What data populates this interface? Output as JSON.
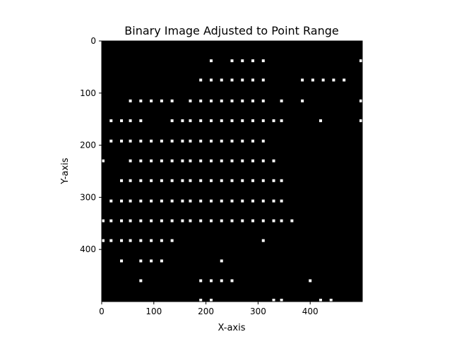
{
  "chart_data": {
    "type": "heatmap",
    "title": "Binary Image Adjusted to Point Range",
    "xlabel": "X-axis",
    "ylabel": "Y-axis",
    "xlim": [
      0,
      500
    ],
    "ylim": [
      500,
      0
    ],
    "x_ticks": [
      0,
      100,
      200,
      300,
      400
    ],
    "y_ticks": [
      0,
      100,
      200,
      300,
      400
    ],
    "background_color": "#000000",
    "point_color": "#ffffff",
    "grid": false,
    "points": [
      {
        "x": 210,
        "y": 38
      },
      {
        "x": 250,
        "y": 38
      },
      {
        "x": 270,
        "y": 38
      },
      {
        "x": 290,
        "y": 38
      },
      {
        "x": 310,
        "y": 38
      },
      {
        "x": 500,
        "y": 38
      },
      {
        "x": 190,
        "y": 75
      },
      {
        "x": 210,
        "y": 75
      },
      {
        "x": 230,
        "y": 75
      },
      {
        "x": 250,
        "y": 75
      },
      {
        "x": 270,
        "y": 75
      },
      {
        "x": 290,
        "y": 75
      },
      {
        "x": 310,
        "y": 75
      },
      {
        "x": 385,
        "y": 75
      },
      {
        "x": 405,
        "y": 75
      },
      {
        "x": 425,
        "y": 75
      },
      {
        "x": 445,
        "y": 75
      },
      {
        "x": 465,
        "y": 75
      },
      {
        "x": 55,
        "y": 115
      },
      {
        "x": 75,
        "y": 115
      },
      {
        "x": 95,
        "y": 115
      },
      {
        "x": 115,
        "y": 115
      },
      {
        "x": 135,
        "y": 115
      },
      {
        "x": 170,
        "y": 115
      },
      {
        "x": 190,
        "y": 115
      },
      {
        "x": 210,
        "y": 115
      },
      {
        "x": 230,
        "y": 115
      },
      {
        "x": 250,
        "y": 115
      },
      {
        "x": 270,
        "y": 115
      },
      {
        "x": 290,
        "y": 115
      },
      {
        "x": 310,
        "y": 115
      },
      {
        "x": 345,
        "y": 115
      },
      {
        "x": 385,
        "y": 115
      },
      {
        "x": 500,
        "y": 115
      },
      {
        "x": 18,
        "y": 153
      },
      {
        "x": 38,
        "y": 153
      },
      {
        "x": 55,
        "y": 153
      },
      {
        "x": 75,
        "y": 153
      },
      {
        "x": 135,
        "y": 153
      },
      {
        "x": 155,
        "y": 153
      },
      {
        "x": 170,
        "y": 153
      },
      {
        "x": 190,
        "y": 153
      },
      {
        "x": 210,
        "y": 153
      },
      {
        "x": 230,
        "y": 153
      },
      {
        "x": 250,
        "y": 153
      },
      {
        "x": 270,
        "y": 153
      },
      {
        "x": 290,
        "y": 153
      },
      {
        "x": 310,
        "y": 153
      },
      {
        "x": 330,
        "y": 153
      },
      {
        "x": 345,
        "y": 153
      },
      {
        "x": 420,
        "y": 153
      },
      {
        "x": 500,
        "y": 153
      },
      {
        "x": 18,
        "y": 192
      },
      {
        "x": 38,
        "y": 192
      },
      {
        "x": 55,
        "y": 192
      },
      {
        "x": 75,
        "y": 192
      },
      {
        "x": 95,
        "y": 192
      },
      {
        "x": 115,
        "y": 192
      },
      {
        "x": 135,
        "y": 192
      },
      {
        "x": 155,
        "y": 192
      },
      {
        "x": 170,
        "y": 192
      },
      {
        "x": 190,
        "y": 192
      },
      {
        "x": 210,
        "y": 192
      },
      {
        "x": 230,
        "y": 192
      },
      {
        "x": 250,
        "y": 192
      },
      {
        "x": 270,
        "y": 192
      },
      {
        "x": 290,
        "y": 192
      },
      {
        "x": 310,
        "y": 192
      },
      {
        "x": 0,
        "y": 230
      },
      {
        "x": 55,
        "y": 230
      },
      {
        "x": 75,
        "y": 230
      },
      {
        "x": 95,
        "y": 230
      },
      {
        "x": 115,
        "y": 230
      },
      {
        "x": 135,
        "y": 230
      },
      {
        "x": 155,
        "y": 230
      },
      {
        "x": 170,
        "y": 230
      },
      {
        "x": 190,
        "y": 230
      },
      {
        "x": 210,
        "y": 230
      },
      {
        "x": 230,
        "y": 230
      },
      {
        "x": 250,
        "y": 230
      },
      {
        "x": 270,
        "y": 230
      },
      {
        "x": 290,
        "y": 230
      },
      {
        "x": 310,
        "y": 230
      },
      {
        "x": 330,
        "y": 230
      },
      {
        "x": 38,
        "y": 268
      },
      {
        "x": 55,
        "y": 268
      },
      {
        "x": 75,
        "y": 268
      },
      {
        "x": 95,
        "y": 268
      },
      {
        "x": 115,
        "y": 268
      },
      {
        "x": 135,
        "y": 268
      },
      {
        "x": 155,
        "y": 268
      },
      {
        "x": 170,
        "y": 268
      },
      {
        "x": 190,
        "y": 268
      },
      {
        "x": 210,
        "y": 268
      },
      {
        "x": 230,
        "y": 268
      },
      {
        "x": 250,
        "y": 268
      },
      {
        "x": 270,
        "y": 268
      },
      {
        "x": 290,
        "y": 268
      },
      {
        "x": 310,
        "y": 268
      },
      {
        "x": 330,
        "y": 268
      },
      {
        "x": 345,
        "y": 268
      },
      {
        "x": 18,
        "y": 307
      },
      {
        "x": 38,
        "y": 307
      },
      {
        "x": 55,
        "y": 307
      },
      {
        "x": 75,
        "y": 307
      },
      {
        "x": 95,
        "y": 307
      },
      {
        "x": 115,
        "y": 307
      },
      {
        "x": 135,
        "y": 307
      },
      {
        "x": 155,
        "y": 307
      },
      {
        "x": 170,
        "y": 307
      },
      {
        "x": 190,
        "y": 307
      },
      {
        "x": 210,
        "y": 307
      },
      {
        "x": 230,
        "y": 307
      },
      {
        "x": 250,
        "y": 307
      },
      {
        "x": 270,
        "y": 307
      },
      {
        "x": 290,
        "y": 307
      },
      {
        "x": 310,
        "y": 307
      },
      {
        "x": 330,
        "y": 307
      },
      {
        "x": 345,
        "y": 307
      },
      {
        "x": 0,
        "y": 345
      },
      {
        "x": 18,
        "y": 345
      },
      {
        "x": 38,
        "y": 345
      },
      {
        "x": 55,
        "y": 345
      },
      {
        "x": 75,
        "y": 345
      },
      {
        "x": 95,
        "y": 345
      },
      {
        "x": 115,
        "y": 345
      },
      {
        "x": 135,
        "y": 345
      },
      {
        "x": 155,
        "y": 345
      },
      {
        "x": 170,
        "y": 345
      },
      {
        "x": 190,
        "y": 345
      },
      {
        "x": 210,
        "y": 345
      },
      {
        "x": 230,
        "y": 345
      },
      {
        "x": 250,
        "y": 345
      },
      {
        "x": 270,
        "y": 345
      },
      {
        "x": 290,
        "y": 345
      },
      {
        "x": 310,
        "y": 345
      },
      {
        "x": 330,
        "y": 345
      },
      {
        "x": 345,
        "y": 345
      },
      {
        "x": 365,
        "y": 345
      },
      {
        "x": 0,
        "y": 383
      },
      {
        "x": 18,
        "y": 383
      },
      {
        "x": 38,
        "y": 383
      },
      {
        "x": 55,
        "y": 383
      },
      {
        "x": 75,
        "y": 383
      },
      {
        "x": 95,
        "y": 383
      },
      {
        "x": 115,
        "y": 383
      },
      {
        "x": 135,
        "y": 383
      },
      {
        "x": 310,
        "y": 383
      },
      {
        "x": 38,
        "y": 422
      },
      {
        "x": 75,
        "y": 422
      },
      {
        "x": 95,
        "y": 422
      },
      {
        "x": 115,
        "y": 422
      },
      {
        "x": 230,
        "y": 422
      },
      {
        "x": 75,
        "y": 460
      },
      {
        "x": 190,
        "y": 460
      },
      {
        "x": 210,
        "y": 460
      },
      {
        "x": 230,
        "y": 460
      },
      {
        "x": 250,
        "y": 460
      },
      {
        "x": 400,
        "y": 460
      },
      {
        "x": 190,
        "y": 498
      },
      {
        "x": 210,
        "y": 498
      },
      {
        "x": 330,
        "y": 498
      },
      {
        "x": 345,
        "y": 498
      },
      {
        "x": 420,
        "y": 498
      },
      {
        "x": 440,
        "y": 498
      }
    ]
  }
}
